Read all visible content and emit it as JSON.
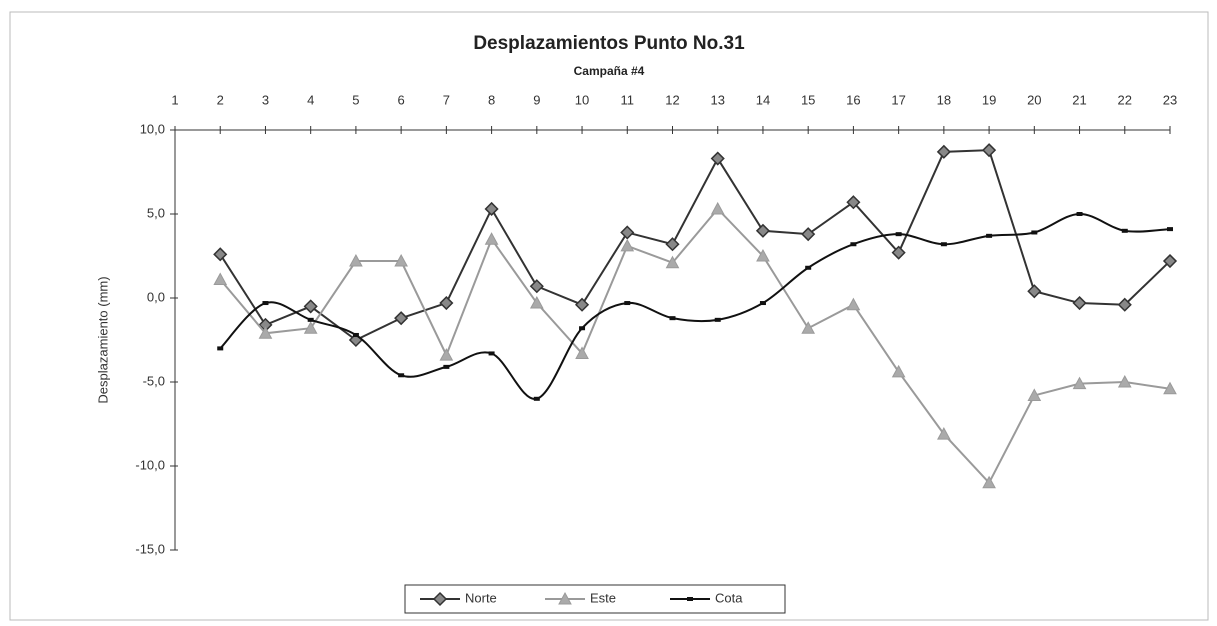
{
  "chart_data": {
    "type": "line",
    "title": "Desplazamientos Punto No.31",
    "subtitle": "Campaña #4",
    "y_label": "Desplazamiento (mm)",
    "x": [
      2,
      3,
      4,
      5,
      6,
      7,
      8,
      9,
      10,
      11,
      12,
      13,
      14,
      15,
      16,
      17,
      18,
      19,
      20,
      21,
      22,
      23
    ],
    "xlim": [
      1,
      23
    ],
    "xticks": [
      1,
      2,
      3,
      4,
      5,
      6,
      7,
      8,
      9,
      10,
      11,
      12,
      13,
      14,
      15,
      16,
      17,
      18,
      19,
      20,
      21,
      22,
      23
    ],
    "ylim": [
      -15,
      10
    ],
    "yticks": [
      {
        "value": 10,
        "label": "10,0"
      },
      {
        "value": 5,
        "label": "5,0"
      },
      {
        "value": 0,
        "label": "0,0"
      },
      {
        "value": -5,
        "label": "-5,0"
      },
      {
        "value": -10,
        "label": "-10,0"
      },
      {
        "value": -15,
        "label": "-15,0"
      }
    ],
    "legend": "bottom",
    "series": [
      {
        "name": "Norte",
        "color": "#333333",
        "marker": "diamond",
        "smooth": false,
        "values": [
          2.6,
          -1.6,
          -0.5,
          -2.5,
          -1.2,
          -0.3,
          5.3,
          0.7,
          -0.4,
          3.9,
          3.2,
          8.3,
          4.0,
          3.8,
          5.7,
          2.7,
          8.7,
          8.8,
          0.4,
          -0.3,
          -0.4,
          2.2
        ]
      },
      {
        "name": "Este",
        "color": "#9a9a9a",
        "marker": "triangle",
        "smooth": false,
        "values": [
          1.1,
          -2.1,
          -1.8,
          2.2,
          2.2,
          -3.4,
          3.5,
          -0.3,
          -3.3,
          3.1,
          2.1,
          5.3,
          2.5,
          -1.8,
          -0.4,
          -4.4,
          -8.1,
          -11.0,
          -5.8,
          -5.1,
          -5.0,
          -5.4
        ]
      },
      {
        "name": "Cota",
        "color": "#111111",
        "marker": "square",
        "smooth": true,
        "values": [
          -3.0,
          -0.3,
          -1.3,
          -2.2,
          -4.6,
          -4.1,
          -3.3,
          -6.0,
          -1.8,
          -0.3,
          -1.2,
          -1.3,
          -0.3,
          1.8,
          3.2,
          3.8,
          3.2,
          3.7,
          3.9,
          5.0,
          4.0,
          4.1
        ]
      }
    ]
  }
}
